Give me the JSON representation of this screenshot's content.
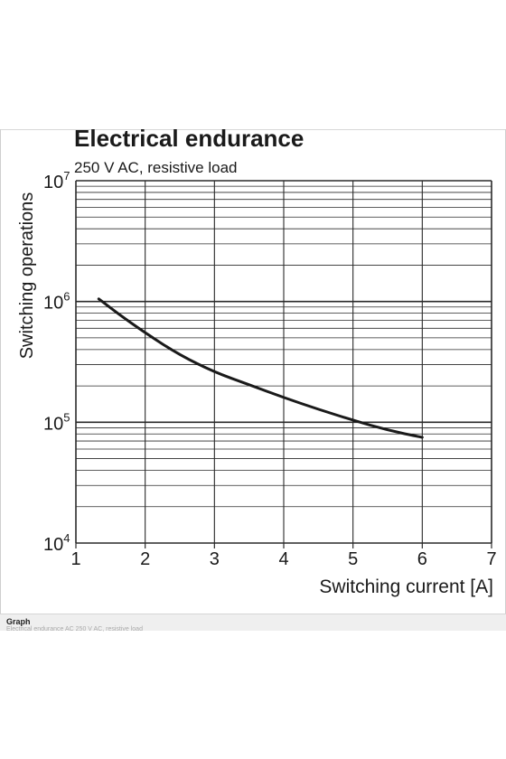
{
  "caption": {
    "title": "Graph",
    "subtitle": "Electrical endurance AC 250 V AC, resistive load"
  },
  "chart_data": {
    "type": "line",
    "title": "Electrical endurance",
    "subtitle": "250 V AC, resistive load",
    "xlabel": "Switching current [A]",
    "ylabel": "Switching operations",
    "xlim": [
      1,
      7
    ],
    "ylim": [
      10000,
      10000000
    ],
    "yscale": "log",
    "grid": true,
    "x_ticks": [
      "1",
      "2",
      "3",
      "4",
      "5",
      "6",
      "7"
    ],
    "y_ticks": [
      {
        "base": "10",
        "exp": "4",
        "value": 10000
      },
      {
        "base": "10",
        "exp": "5",
        "value": 100000
      },
      {
        "base": "10",
        "exp": "6",
        "value": 1000000
      },
      {
        "base": "10",
        "exp": "7",
        "value": 10000000
      }
    ],
    "series": [
      {
        "x": [
          1.33,
          1.6,
          2.0,
          2.5,
          3.0,
          3.5,
          4.0,
          4.5,
          5.0,
          5.5,
          6.0
        ],
        "y": [
          1050000,
          800000,
          550000,
          360000,
          260000,
          205000,
          160000,
          128000,
          104000,
          86000,
          75000
        ]
      }
    ],
    "colors": {
      "line": "#1a1a1a",
      "grid": "#2a2a2a",
      "text": "#1a1a1a"
    }
  }
}
